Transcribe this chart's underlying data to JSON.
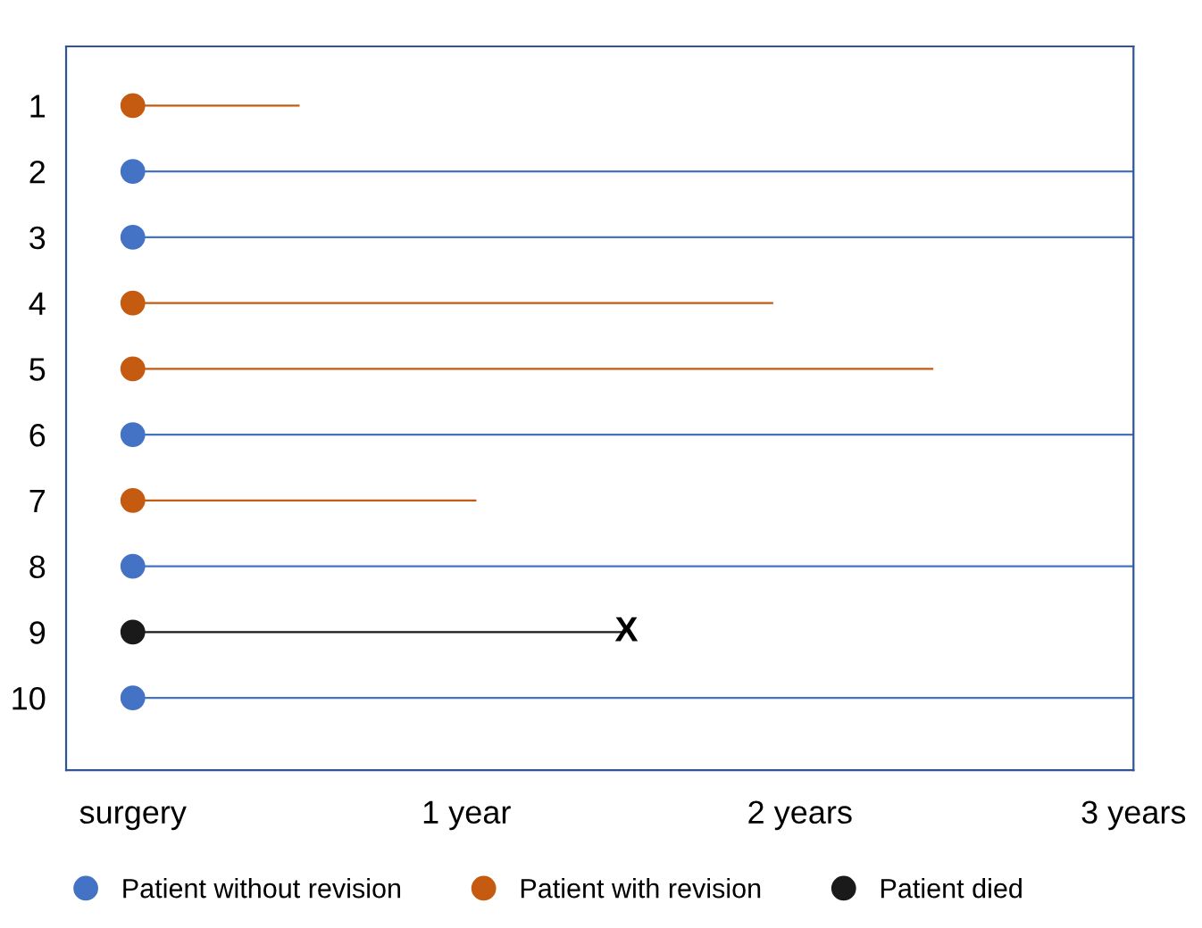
{
  "chart_data": {
    "type": "bar",
    "orientation": "horizontal",
    "categories": [
      "1",
      "2",
      "3",
      "4",
      "5",
      "6",
      "7",
      "8",
      "9",
      "10"
    ],
    "series": [
      {
        "color": "#4472c4",
        "values": [
          null,
          3,
          3,
          null,
          null,
          3,
          null,
          3,
          null,
          3
        ]
      },
      {
        "color": "#c55a11",
        "values": [
          0.5,
          null,
          null,
          1.92,
          2.4,
          null,
          1.03,
          null,
          null,
          null
        ]
      },
      {
        "color": "#1a1a1a",
        "values": [
          null,
          null,
          null,
          null,
          null,
          null,
          null,
          null,
          1.48,
          null
        ]
      },
      {
        "name": "Patient without revision",
        "type": "scatter",
        "color": "#4472c4",
        "values": [
          null,
          0,
          0,
          null,
          null,
          0,
          null,
          0,
          null,
          0
        ]
      },
      {
        "name": "Patient with revision",
        "type": "scatter",
        "color": "#c55a11",
        "values": [
          0,
          null,
          null,
          0,
          0,
          null,
          0,
          null,
          null,
          null
        ]
      },
      {
        "name": "Patient died",
        "type": "scatter",
        "color": "#1a1a1a",
        "values": [
          null,
          null,
          null,
          null,
          null,
          null,
          null,
          null,
          0,
          null
        ]
      }
    ],
    "xlim": [
      -0.2,
      3
    ],
    "xticks": [
      {
        "value": 0,
        "label": "surgery"
      },
      {
        "value": 1,
        "label": "1 year"
      },
      {
        "value": 2,
        "label": "2 years"
      },
      {
        "value": 3,
        "label": "3 years"
      }
    ],
    "annotations": [
      {
        "text": "X",
        "x": 1.48,
        "y": "9"
      }
    ],
    "marker": "circle",
    "legend": "bottom",
    "grid": false
  }
}
